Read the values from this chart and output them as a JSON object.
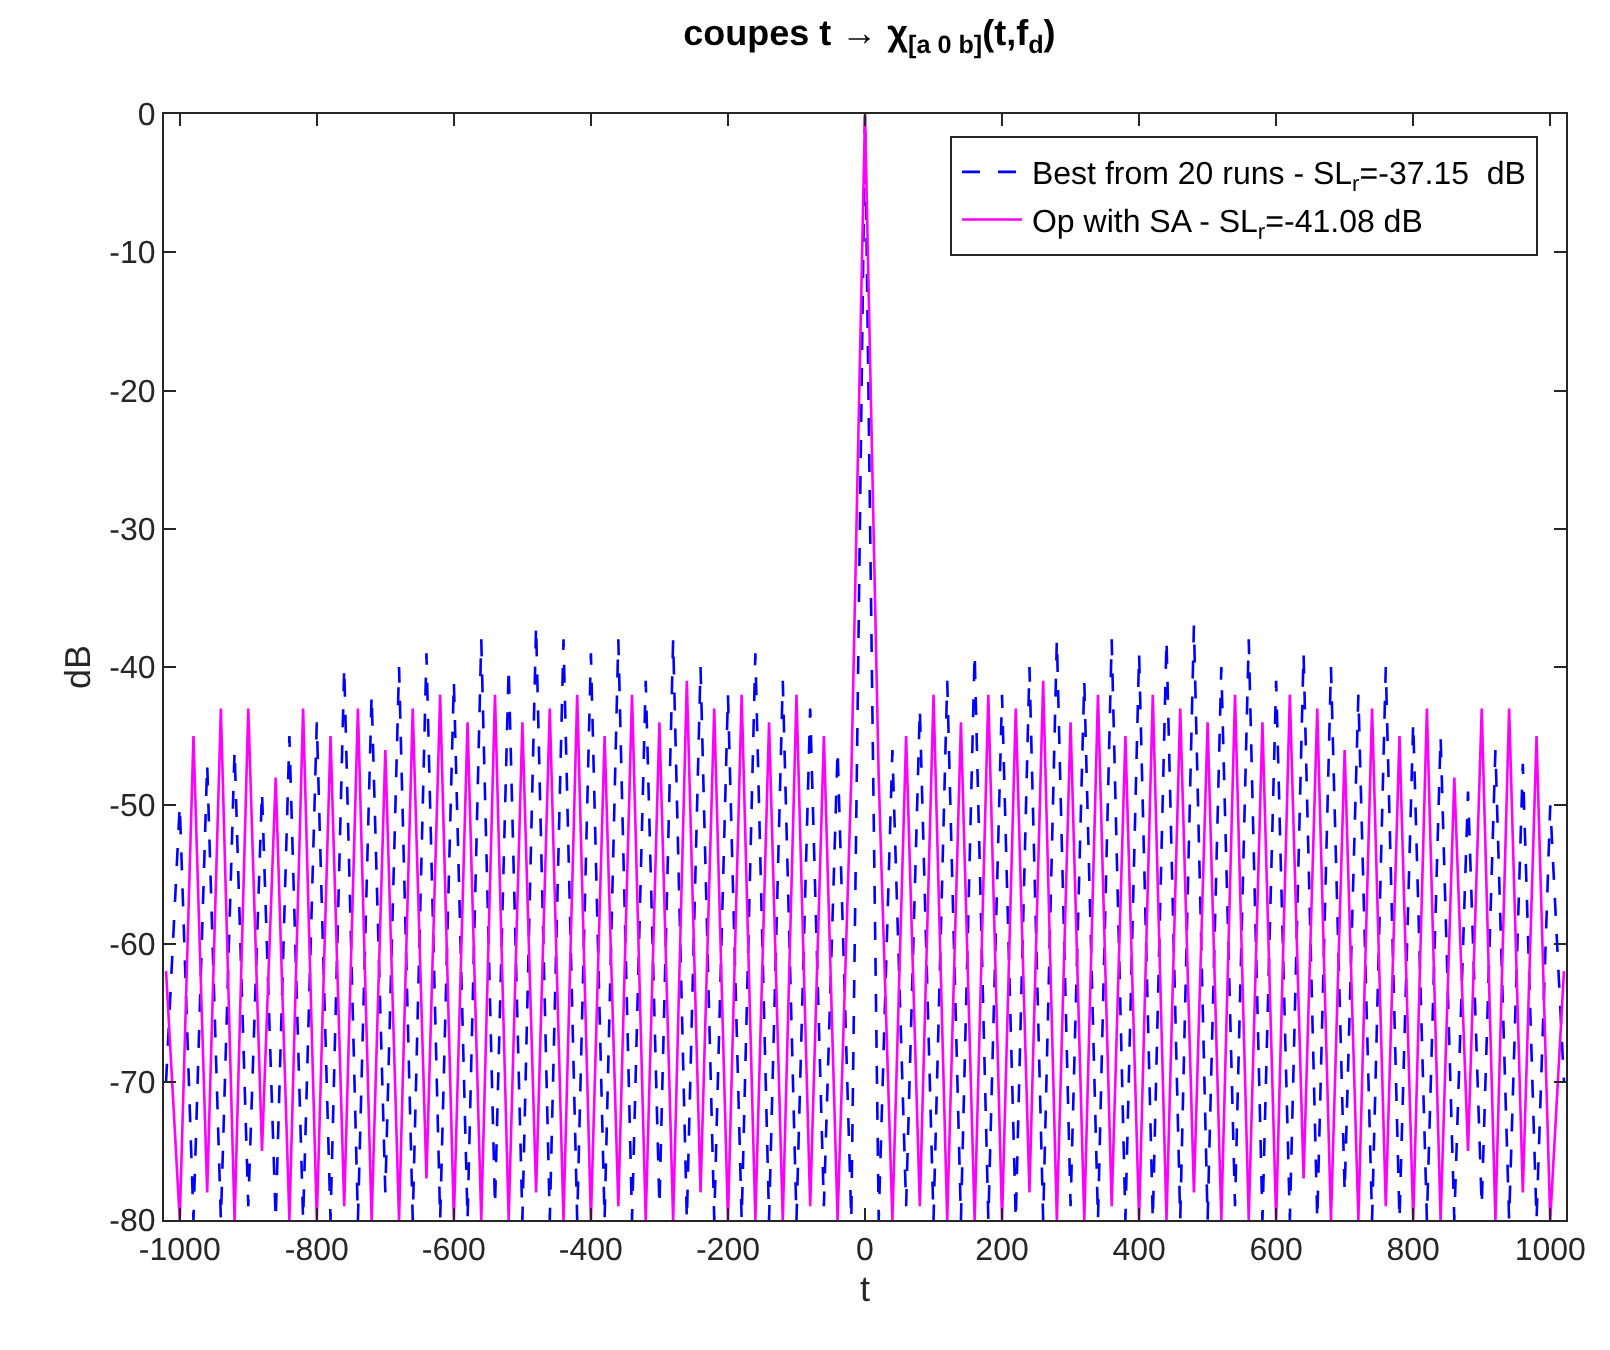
{
  "chart_data": {
    "type": "line",
    "title": "coupes t → χ$_{[a 0 b]}$(t,f$_{d}$)",
    "xlabel": "t",
    "ylabel": "dB",
    "x": [
      -1020,
      -1000,
      -980,
      -960,
      -940,
      -920,
      -900,
      -880,
      -860,
      -840,
      -820,
      -800,
      -780,
      -760,
      -740,
      -720,
      -700,
      -680,
      -660,
      -640,
      -620,
      -600,
      -580,
      -560,
      -540,
      -520,
      -500,
      -480,
      -460,
      -440,
      -420,
      -400,
      -380,
      -360,
      -340,
      -320,
      -300,
      -280,
      -260,
      -240,
      -220,
      -200,
      -180,
      -160,
      -140,
      -120,
      -100,
      -80,
      -60,
      -40,
      -20,
      0,
      20,
      40,
      60,
      80,
      100,
      120,
      140,
      160,
      180,
      200,
      220,
      240,
      260,
      280,
      300,
      320,
      340,
      360,
      380,
      400,
      420,
      440,
      460,
      480,
      500,
      520,
      540,
      560,
      580,
      600,
      620,
      640,
      660,
      680,
      700,
      720,
      740,
      760,
      780,
      800,
      820,
      840,
      860,
      880,
      900,
      920,
      940,
      960,
      980,
      1000,
      1020
    ],
    "series": [
      {
        "name": "Best from 20 runs - SL$_{r}$=-37.15  dB",
        "color": "#0000ff",
        "line_style": "dashed",
        "values": [
          -70,
          -50,
          -80,
          -47,
          -80,
          -46,
          -79,
          -49,
          -80,
          -45,
          -80,
          -44,
          -80,
          -40,
          -80,
          -42,
          -78,
          -40,
          -80,
          -39,
          -80,
          -41,
          -80,
          -38,
          -79,
          -40,
          -80,
          -37,
          -80,
          -38,
          -80,
          -39,
          -80,
          -38,
          -80,
          -41,
          -79,
          -38,
          -80,
          -40,
          -80,
          -42,
          -80,
          -39,
          -80,
          -41,
          -80,
          -43,
          -79,
          -46,
          -80,
          0,
          -80,
          -46,
          -79,
          -43,
          -80,
          -41,
          -80,
          -39,
          -80,
          -42,
          -80,
          -40,
          -80,
          -38,
          -79,
          -41,
          -80,
          -38,
          -80,
          -39,
          -80,
          -38,
          -80,
          -37,
          -80,
          -40,
          -79,
          -38,
          -80,
          -41,
          -80,
          -39,
          -80,
          -40,
          -78,
          -42,
          -80,
          -40,
          -80,
          -44,
          -80,
          -45,
          -80,
          -49,
          -79,
          -46,
          -80,
          -47,
          -80,
          -50,
          -70
        ]
      },
      {
        "name": "Op with SA - SL$_{r}$=-41.08 dB",
        "color": "#ff00ff",
        "line_style": "solid",
        "values": [
          -62,
          -80,
          -45,
          -78,
          -43,
          -80,
          -43,
          -75,
          -48,
          -80,
          -43,
          -80,
          -45,
          -79,
          -43,
          -80,
          -46,
          -80,
          -43,
          -77,
          -42,
          -80,
          -44,
          -80,
          -42,
          -80,
          -44,
          -78,
          -43,
          -80,
          -42,
          -80,
          -45,
          -79,
          -42,
          -80,
          -44,
          -80,
          -41,
          -78,
          -43,
          -80,
          -42,
          -80,
          -44,
          -80,
          -42,
          -79,
          -45,
          -80,
          -48,
          0,
          -48,
          -80,
          -45,
          -79,
          -42,
          -80,
          -44,
          -80,
          -42,
          -80,
          -43,
          -78,
          -41,
          -80,
          -44,
          -80,
          -42,
          -79,
          -45,
          -80,
          -42,
          -80,
          -43,
          -78,
          -44,
          -80,
          -42,
          -80,
          -44,
          -80,
          -42,
          -77,
          -43,
          -80,
          -46,
          -80,
          -43,
          -79,
          -45,
          -80,
          -43,
          -80,
          -48,
          -75,
          -43,
          -80,
          -43,
          -78,
          -45,
          -80,
          -62
        ]
      }
    ],
    "xlim": [
      -1023,
      1023
    ],
    "xticks": [
      -1000,
      -800,
      -600,
      -400,
      -200,
      0,
      200,
      400,
      600,
      800,
      1000
    ],
    "ylim": [
      -80,
      0
    ],
    "yticks": [
      -80,
      -70,
      -60,
      -50,
      -40,
      -30,
      -20,
      -10,
      0
    ],
    "legend": "top right",
    "marker": "none"
  }
}
